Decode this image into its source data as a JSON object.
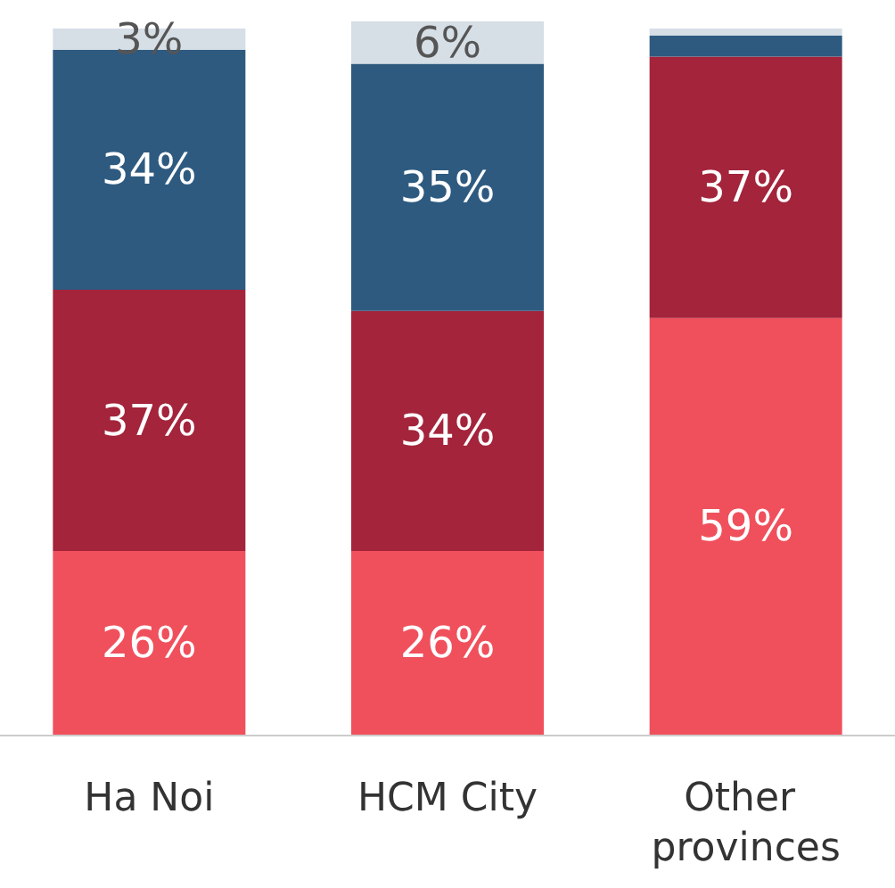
{
  "chart_data": {
    "type": "bar",
    "stacked": true,
    "categories": [
      "Ha Noi",
      "HCM City",
      "Other provinces"
    ],
    "series": [
      {
        "color": "#f0505c",
        "values": [
          26,
          26,
          59
        ],
        "value_labels": [
          "26%",
          "26%",
          "59%"
        ]
      },
      {
        "color": "#a3243b",
        "values": [
          37,
          34,
          37
        ],
        "value_labels": [
          "37%",
          "34%",
          "37%"
        ]
      },
      {
        "color": "#2e5a80",
        "values": [
          34,
          35,
          3
        ],
        "value_labels": [
          "34%",
          "35%",
          null
        ]
      },
      {
        "color": "#d6dee6",
        "values": [
          3,
          6,
          1
        ],
        "value_labels": [
          "3%",
          "6%",
          null
        ]
      }
    ]
  }
}
